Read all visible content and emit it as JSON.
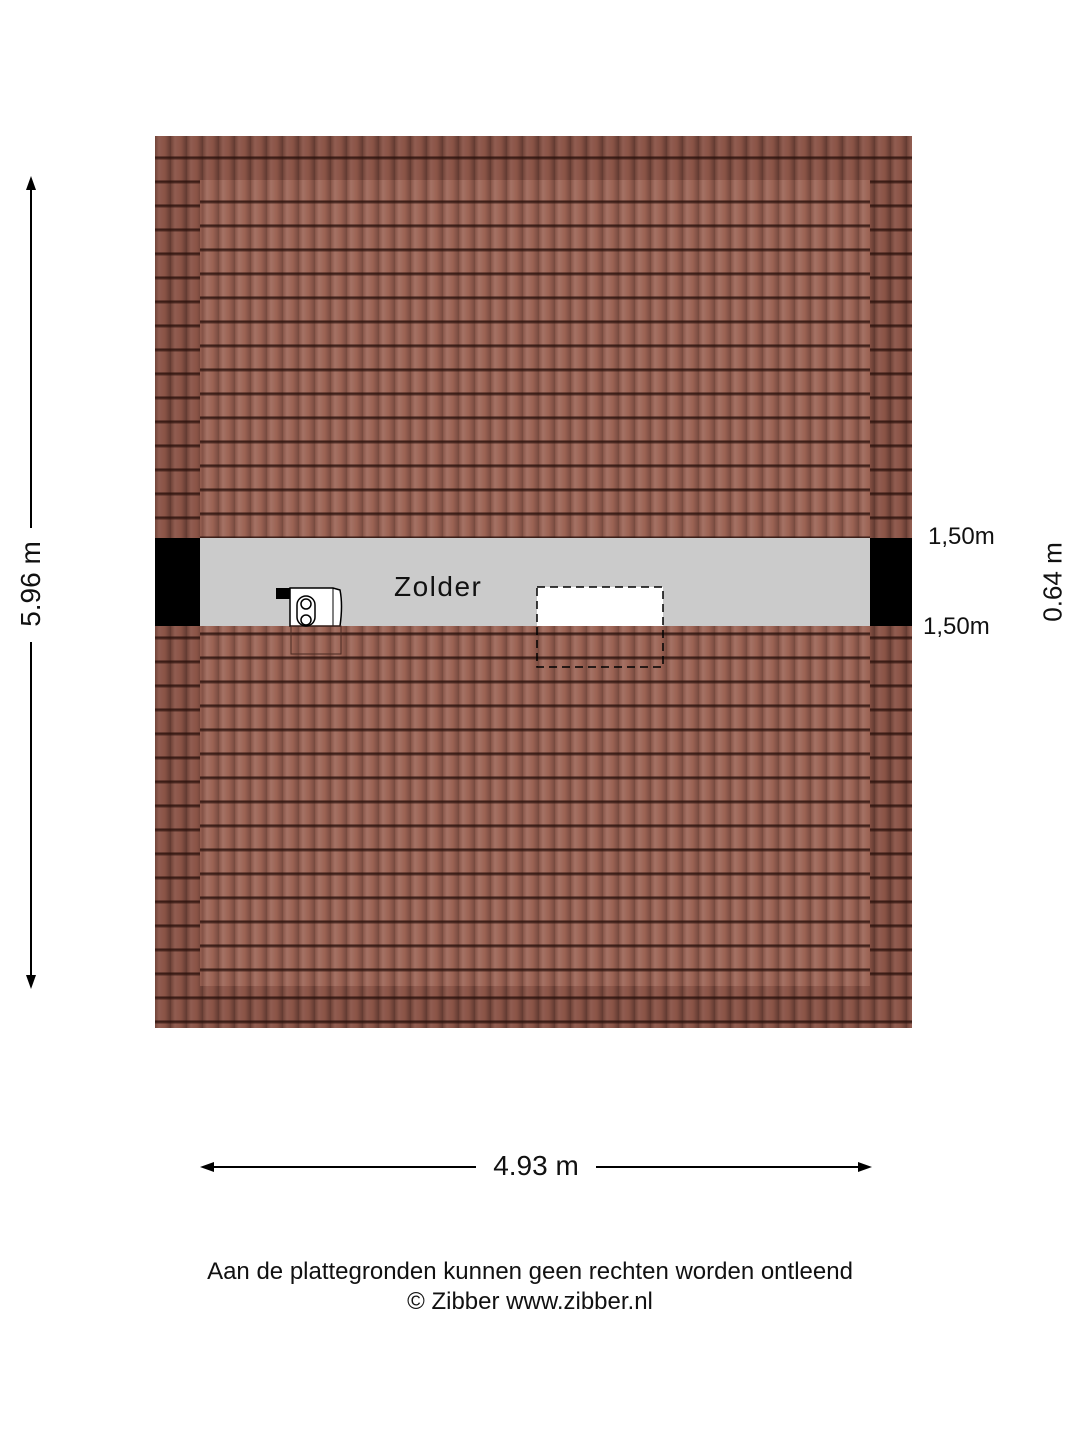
{
  "room": {
    "name": "Zolder"
  },
  "dimensions": {
    "height": "5.96 m",
    "width": "4.93 m",
    "band_depth": "0.64 m",
    "top_height": "1,50m",
    "bottom_height": "1,50m"
  },
  "footer": {
    "disclaimer": "Aan de plattegronden kunnen geen rechten worden ontleend",
    "copyright": "© Zibber www.zibber.nl"
  },
  "colors": {
    "roof": "#8a5346",
    "floor": "#cbcbcb",
    "wall": "#000000"
  }
}
